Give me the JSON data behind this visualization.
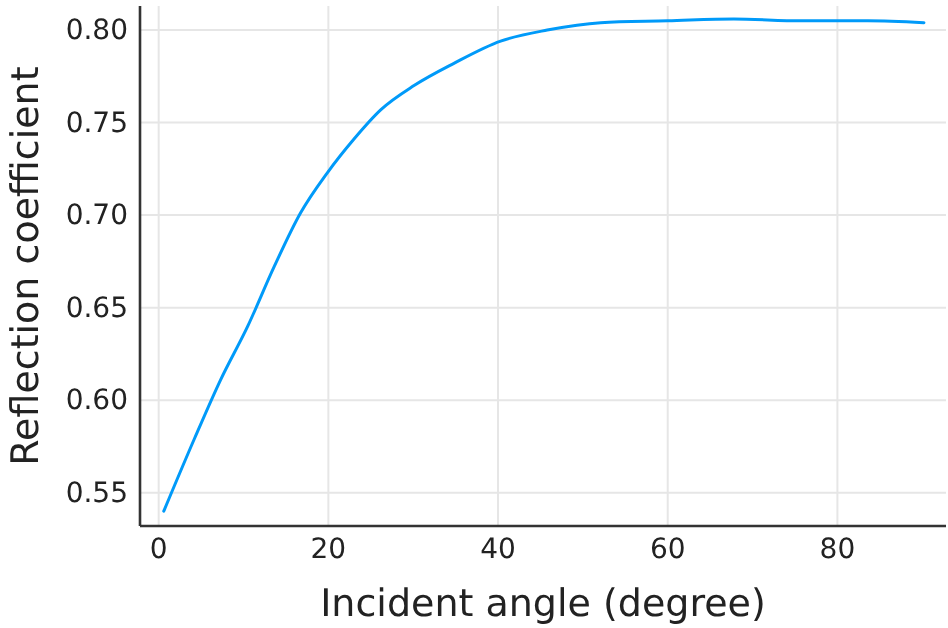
{
  "chart_data": {
    "type": "line",
    "xlabel": "Incident angle (degree)",
    "ylabel": "Reflection coefficient",
    "x": [
      0.6,
      4.2,
      7.3,
      10.5,
      13.6,
      16.7,
      19.9,
      23.0,
      26.2,
      30.1,
      34.8,
      40.3,
      45.8,
      52.1,
      60,
      67.8,
      75.7,
      83.6,
      90.2
    ],
    "series": [
      {
        "color": "#009af9",
        "values": [
          0.54,
          0.579,
          0.611,
          0.64,
          0.672,
          0.701,
          0.723,
          0.741,
          0.757,
          0.77,
          0.782,
          0.794,
          0.8,
          0.804,
          0.805,
          0.806,
          0.805,
          0.805,
          0.804
        ]
      }
    ],
    "xlim": [
      -2.2,
      92.8
    ],
    "ylim": [
      0.532,
      0.813
    ],
    "xticks": [
      0,
      20,
      40,
      60,
      80
    ],
    "yticks": [
      0.55,
      {
        "value": 0.6,
        "label": "0.60"
      },
      0.65,
      {
        "value": 0.7,
        "label": "0.70"
      },
      0.75,
      {
        "value": 0.8,
        "label": "0.80"
      }
    ],
    "grid": true,
    "marker": "none",
    "line_style": "solid"
  }
}
